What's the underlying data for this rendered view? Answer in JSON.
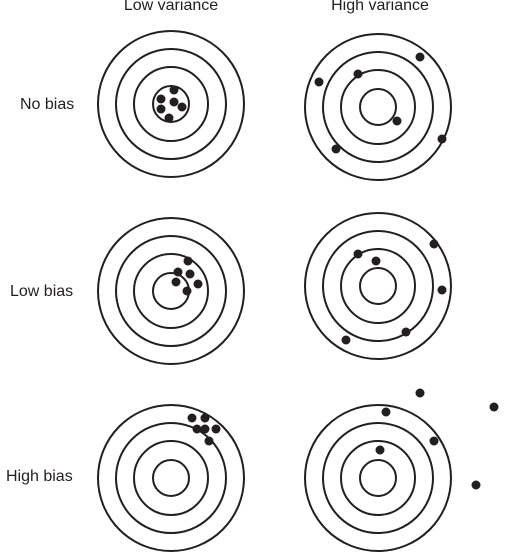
{
  "columns": {
    "low_variance": "Low variance",
    "high_variance": "High variance"
  },
  "rows": {
    "no_bias": "No bias",
    "low_bias": "Low bias",
    "high_bias": "High bias"
  },
  "colors": {
    "ink": "#231f20",
    "background": "#ffffff"
  }
}
